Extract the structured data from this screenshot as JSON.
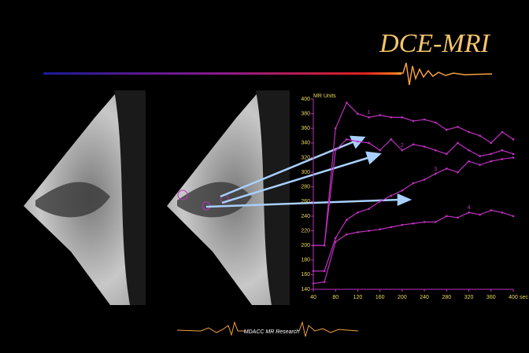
{
  "title": "DCE-MRI",
  "footer": "MDACC MR Research",
  "chart_data": {
    "type": "line",
    "ylabel": "MR Units",
    "xlabel": "sec",
    "x": [
      40,
      60,
      80,
      100,
      120,
      140,
      160,
      180,
      200,
      220,
      240,
      260,
      280,
      300,
      320,
      340,
      360,
      380,
      400
    ],
    "series": [
      {
        "name": "1",
        "color": "#c030c0",
        "values": [
          200,
          200,
          360,
          395,
          380,
          375,
          378,
          375,
          375,
          370,
          372,
          368,
          358,
          362,
          355,
          350,
          340,
          355,
          345
        ]
      },
      {
        "name": "2",
        "color": "#c030c0",
        "values": [
          200,
          200,
          330,
          345,
          342,
          340,
          330,
          345,
          330,
          338,
          335,
          330,
          325,
          340,
          330,
          322,
          325,
          330,
          325
        ]
      },
      {
        "name": "3",
        "color": "#c030c0",
        "values": [
          165,
          165,
          210,
          235,
          245,
          250,
          260,
          268,
          275,
          285,
          290,
          298,
          305,
          300,
          315,
          310,
          315,
          318,
          320
        ]
      },
      {
        "name": "4",
        "color": "#c030c0",
        "values": [
          148,
          150,
          205,
          215,
          218,
          220,
          222,
          225,
          228,
          230,
          232,
          232,
          240,
          238,
          245,
          242,
          248,
          245,
          240
        ]
      }
    ],
    "xlim": [
      40,
      400
    ],
    "ylim": [
      140,
      400
    ],
    "xticks": [
      40,
      80,
      120,
      160,
      200,
      240,
      280,
      320,
      360,
      400
    ],
    "yticks": [
      140,
      160,
      180,
      200,
      220,
      240,
      260,
      280,
      300,
      320,
      340,
      360,
      380,
      400
    ],
    "axis_color": "#c030c0"
  }
}
